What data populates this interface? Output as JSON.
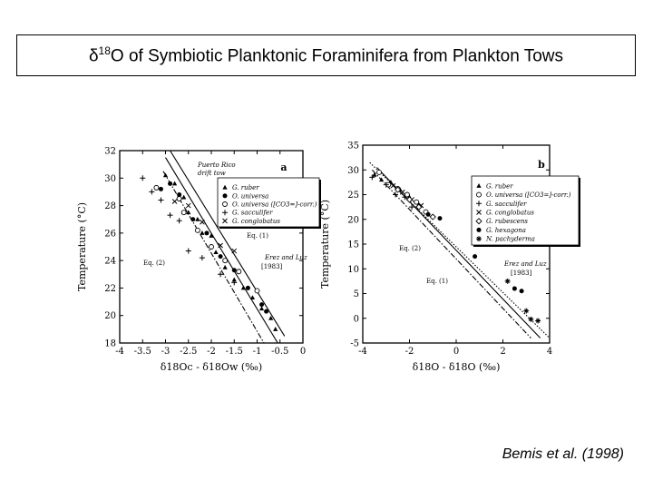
{
  "header": {
    "title_delta": "δ",
    "title_sup": "18",
    "title_rest": "O of Symbiotic Planktonic Foraminifera from Plankton Tows"
  },
  "citation": {
    "text": "Bemis et al. (1998)"
  },
  "chart_data": [
    {
      "id": "a",
      "type": "scatter",
      "panel_label": "a",
      "ylabel": "Temperature (°C)",
      "xlabel": "δ18Oc - δ18Ow (‰)",
      "xlim": [
        -4,
        0
      ],
      "ylim": [
        18,
        32
      ],
      "xticks": [
        "-4",
        "-3.5",
        "-3",
        "-2.5",
        "-2",
        "-1.5",
        "-1",
        "-0.5",
        "0"
      ],
      "yticks": [
        "18",
        "20",
        "22",
        "24",
        "26",
        "28",
        "30",
        "32"
      ],
      "legend": [
        "G. ruber",
        "O. universa",
        "O. universa ([CO3=]-corr.)",
        "G. sacculifer",
        "G. conglobatus"
      ],
      "annotations": [
        "Puerto Rico",
        "drift tow",
        "Eq. (1)",
        "Eq. (2)",
        "Erez and Luz",
        "[1983]"
      ],
      "lines": [
        {
          "name": "Eq. (1)",
          "style": "solid",
          "x": [
            -3.0,
            -0.55
          ],
          "y": [
            31.5,
            18
          ]
        },
        {
          "name": "Eq. (2)",
          "style": "dashdot",
          "x": [
            -3.05,
            -0.85
          ],
          "y": [
            30.5,
            18
          ]
        },
        {
          "name": "Erez and Luz [1983]",
          "style": "solid",
          "x": [
            -2.9,
            -0.4
          ],
          "y": [
            32,
            18.5
          ]
        }
      ],
      "series": [
        {
          "name": "G. ruber",
          "marker": "triangle",
          "points": [
            [
              -3.0,
              30.2
            ],
            [
              -2.8,
              29.6
            ],
            [
              -2.6,
              28.6
            ],
            [
              -2.5,
              27.5
            ],
            [
              -2.3,
              27
            ],
            [
              -2.2,
              26
            ],
            [
              -2.0,
              25.8
            ],
            [
              -1.9,
              24.6
            ],
            [
              -1.7,
              23.5
            ],
            [
              -1.5,
              22.6
            ],
            [
              -1.3,
              22
            ],
            [
              -1.1,
              21.3
            ],
            [
              -0.9,
              20.5
            ],
            [
              -0.7,
              19.8
            ],
            [
              -0.6,
              19
            ]
          ]
        },
        {
          "name": "O. universa",
          "marker": "circle-filled",
          "points": [
            [
              -3.1,
              29.2
            ],
            [
              -2.9,
              29.6
            ],
            [
              -2.7,
              28.8
            ],
            [
              -2.4,
              27
            ],
            [
              -2.1,
              26
            ],
            [
              -1.8,
              24.3
            ],
            [
              -1.5,
              23.3
            ],
            [
              -1.2,
              22
            ],
            [
              -0.9,
              20.8
            ],
            [
              -0.8,
              20.3
            ]
          ]
        },
        {
          "name": "O. universa ([CO3=]-corr.)",
          "marker": "circle-open",
          "points": [
            [
              -3.2,
              29.3
            ],
            [
              -2.7,
              28.5
            ],
            [
              -2.6,
              27.5
            ],
            [
              -2.3,
              26.2
            ],
            [
              -2.0,
              25
            ],
            [
              -1.7,
              24
            ],
            [
              -1.4,
              23.2
            ],
            [
              -1.0,
              21.8
            ]
          ]
        },
        {
          "name": "G. sacculifer",
          "marker": "plus",
          "points": [
            [
              -3.5,
              30
            ],
            [
              -3.3,
              29
            ],
            [
              -3.1,
              28.4
            ],
            [
              -2.9,
              27.3
            ],
            [
              -2.7,
              26.9
            ],
            [
              -2.5,
              24.7
            ],
            [
              -2.2,
              24.2
            ],
            [
              -1.8,
              23
            ],
            [
              -1.5,
              22.4
            ]
          ]
        },
        {
          "name": "G. conglobatus",
          "marker": "cross",
          "points": [
            [
              -2.8,
              28.3
            ],
            [
              -2.5,
              28
            ],
            [
              -2.2,
              26.8
            ],
            [
              -1.8,
              25.1
            ],
            [
              -1.5,
              24.7
            ]
          ]
        }
      ]
    },
    {
      "id": "b",
      "type": "scatter",
      "panel_label": "b",
      "ylabel": "Temperature (°C)",
      "xlabel": "δ18O - δ18O (‰)",
      "xlim": [
        -4,
        4
      ],
      "ylim": [
        -5,
        35
      ],
      "xticks": [
        "-4",
        "-2",
        "0",
        "2",
        "4"
      ],
      "yticks": [
        "-5",
        "0",
        "5",
        "10",
        "15",
        "20",
        "25",
        "30",
        "35"
      ],
      "legend": [
        "G. ruber",
        "O. universa ([CO3=]-corr.)",
        "G. sacculifer",
        "G. conglobatus",
        "G. rubescens",
        "G. hexagona",
        "N. pachyderma"
      ],
      "annotations": [
        "Eq. (2)",
        "Eq. (1)",
        "Erez and Luz",
        "[1983]"
      ],
      "lines": [
        {
          "name": "Eq. (1)",
          "style": "solid",
          "x": [
            -3.4,
            3.6
          ],
          "y": [
            30.5,
            -4
          ]
        },
        {
          "name": "Eq. (2)",
          "style": "dashdot",
          "x": [
            -3.6,
            3.2
          ],
          "y": [
            30,
            -4
          ]
        },
        {
          "name": "Erez and Luz [1983]",
          "style": "dotted",
          "x": [
            -3.7,
            4.0
          ],
          "y": [
            31.5,
            -4
          ]
        }
      ],
      "series": [
        {
          "name": "G. ruber",
          "marker": "triangle",
          "points": [
            [
              -3.5,
              29
            ],
            [
              -3.2,
              28
            ],
            [
              -2.8,
              27.5
            ],
            [
              -2.4,
              26
            ],
            [
              -2.0,
              24.5
            ],
            [
              -1.6,
              23
            ]
          ]
        },
        {
          "name": "O. universa ([CO3=]-corr.)",
          "marker": "circle-open",
          "points": [
            [
              -3.3,
              29.5
            ],
            [
              -2.9,
              27
            ],
            [
              -2.5,
              26.2
            ],
            [
              -2.1,
              25
            ],
            [
              -1.7,
              23.5
            ],
            [
              -1.3,
              21.5
            ]
          ]
        },
        {
          "name": "G. sacculifer",
          "marker": "plus",
          "points": [
            [
              -3.6,
              28.5
            ],
            [
              -3.0,
              27
            ],
            [
              -2.6,
              25
            ],
            [
              -2.2,
              24.5
            ],
            [
              -1.9,
              22.5
            ]
          ]
        },
        {
          "name": "G. conglobatus",
          "marker": "cross",
          "points": [
            [
              -2.7,
              26.8
            ],
            [
              -2.3,
              25.5
            ],
            [
              -1.9,
              24
            ],
            [
              -1.5,
              22.8
            ]
          ]
        },
        {
          "name": "G. rubescens",
          "marker": "diamond",
          "points": [
            [
              -2.5,
              26
            ],
            [
              -2.0,
              24
            ],
            [
              -1.6,
              22.5
            ],
            [
              -1.0,
              20.5
            ]
          ]
        },
        {
          "name": "G. hexagona",
          "marker": "circle-filled",
          "points": [
            [
              -1.2,
              21
            ],
            [
              -0.7,
              20.2
            ],
            [
              0.8,
              12.5
            ],
            [
              2.5,
              6
            ],
            [
              2.8,
              5.5
            ]
          ]
        },
        {
          "name": "N. pachyderma",
          "marker": "star",
          "points": [
            [
              2.2,
              7.5
            ],
            [
              3.0,
              1.5
            ],
            [
              3.5,
              -0.5
            ],
            [
              3.2,
              -0.2
            ]
          ]
        }
      ]
    }
  ]
}
